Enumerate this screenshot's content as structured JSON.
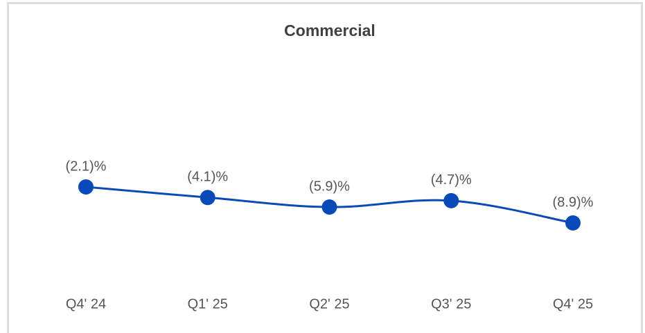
{
  "chart_data": {
    "type": "line",
    "title": "Commercial",
    "categories": [
      "Q4' 24",
      "Q1' 25",
      "Q2' 25",
      "Q3' 25",
      "Q4' 25"
    ],
    "series": [
      {
        "name": "Commercial",
        "color": "#0a4ab8",
        "values": [
          -2.1,
          -4.1,
          -5.9,
          -4.7,
          -8.9
        ],
        "value_labels": [
          "(2.1)%",
          "(4.1)%",
          "(5.9)%",
          "(4.7)%",
          "(8.9)%"
        ]
      }
    ]
  }
}
